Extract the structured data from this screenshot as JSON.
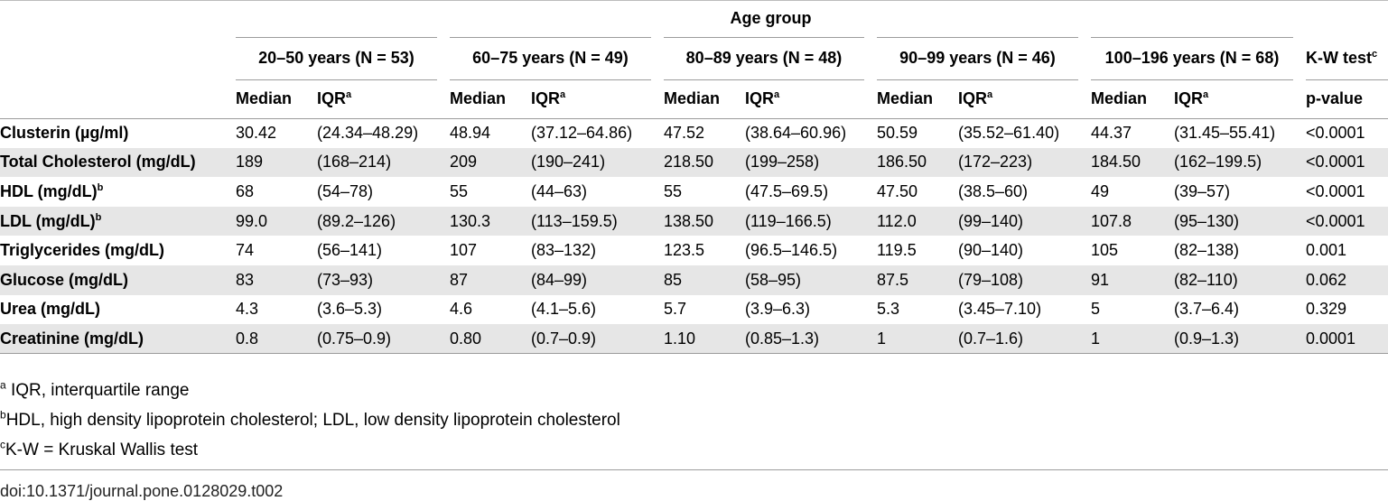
{
  "table": {
    "age_group_label": "Age group",
    "groups": [
      "20–50 years (N = 53)",
      "60–75 years (N = 49)",
      "80–89 years (N = 48)",
      "90–99 years (N = 46)",
      "100–196 years (N = 68)"
    ],
    "kw_test_label": "K-W test",
    "kw_test_sup": "c",
    "median_label": "Median",
    "iqr_label": "IQR",
    "iqr_sup": "a",
    "pvalue_label": "p-value",
    "rows": [
      {
        "label": "Clusterin (µg/ml)",
        "sup": "",
        "cells": [
          "30.42",
          "(24.34–48.29)",
          "48.94",
          "(37.12–64.86)",
          "47.52",
          "(38.64–60.96)",
          "50.59",
          "(35.52–61.40)",
          "44.37",
          "(31.45–55.41)"
        ],
        "p": "<0.0001"
      },
      {
        "label": "Total Cholesterol (mg/dL)",
        "sup": "",
        "cells": [
          "189",
          "(168–214)",
          "209",
          "(190–241)",
          "218.50",
          "(199–258)",
          "186.50",
          "(172–223)",
          "184.50",
          "(162–199.5)"
        ],
        "p": "<0.0001"
      },
      {
        "label": "HDL (mg/dL)",
        "sup": "b",
        "cells": [
          "68",
          "(54–78)",
          "55",
          "(44–63)",
          "55",
          "(47.5–69.5)",
          "47.50",
          "(38.5–60)",
          "49",
          "(39–57)"
        ],
        "p": "<0.0001"
      },
      {
        "label": "LDL (mg/dL)",
        "sup": "b",
        "cells": [
          "99.0",
          "(89.2–126)",
          "130.3",
          "(113–159.5)",
          "138.50",
          "(119–166.5)",
          "112.0",
          "(99–140)",
          "107.8",
          "(95–130)"
        ],
        "p": "<0.0001"
      },
      {
        "label": "Triglycerides (mg/dL)",
        "sup": "",
        "cells": [
          "74",
          "(56–141)",
          "107",
          "(83–132)",
          "123.5",
          "(96.5–146.5)",
          "119.5",
          "(90–140)",
          "105",
          "(82–138)"
        ],
        "p": "0.001"
      },
      {
        "label": "Glucose (mg/dL)",
        "sup": "",
        "cells": [
          "83",
          "(73–93)",
          "87",
          "(84–99)",
          "85",
          "(58–95)",
          "87.5",
          "(79–108)",
          "91",
          "(82–110)"
        ],
        "p": "0.062"
      },
      {
        "label": "Urea (mg/dL)",
        "sup": "",
        "cells": [
          "4.3",
          "(3.6–5.3)",
          "4.6",
          "(4.1–5.6)",
          "5.7",
          "(3.9–6.3)",
          "5.3",
          "(3.45–7.10)",
          "5",
          "(3.7–6.4)"
        ],
        "p": "0.329"
      },
      {
        "label": "Creatinine (mg/dL)",
        "sup": "",
        "cells": [
          "0.8",
          "(0.75–0.9)",
          "0.80",
          "(0.7–0.9)",
          "1.10",
          "(0.85–1.3)",
          "1",
          "(0.7–1.6)",
          "1",
          "(0.9–1.3)"
        ],
        "p": "0.0001"
      }
    ]
  },
  "footnotes": [
    {
      "sup": "a",
      "text": " IQR, interquartile range"
    },
    {
      "sup": "b",
      "text": "HDL, high density lipoprotein cholesterol; LDL, low density lipoprotein cholesterol"
    },
    {
      "sup": "c",
      "text": "K-W = Kruskal Wallis test"
    }
  ],
  "doi": "doi:10.1371/journal.pone.0128029.t002"
}
